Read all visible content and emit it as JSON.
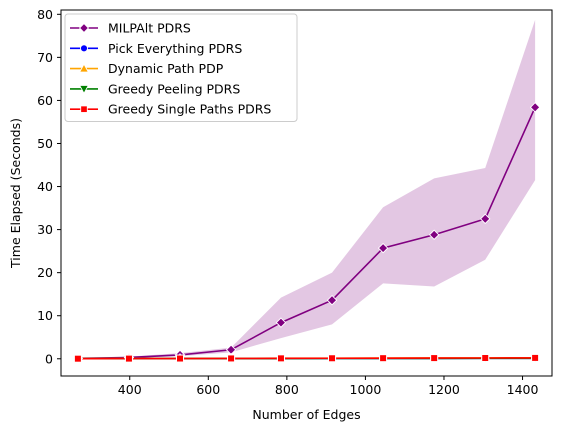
{
  "chart_data": {
    "type": "line",
    "xlabel": "Number of Edges",
    "ylabel": "Time Elapsed (Seconds)",
    "xlim": [
      225,
      1475
    ],
    "ylim": [
      -4,
      81
    ],
    "xticks": [
      400,
      600,
      800,
      1000,
      1200,
      1400
    ],
    "yticks": [
      0,
      10,
      20,
      30,
      40,
      50,
      60,
      70,
      80
    ],
    "grid": false,
    "legend_position": "upper left",
    "x": [
      268,
      398,
      528,
      658,
      785,
      915,
      1045,
      1175,
      1305,
      1432
    ],
    "series": [
      {
        "name": "MILPAlt PDRS",
        "color": "#800080",
        "marker": "diamond",
        "values": [
          0.1,
          0.3,
          0.9,
          2.1,
          8.4,
          13.6,
          25.7,
          28.8,
          32.5,
          58.4
        ],
        "ci_low": [
          0.05,
          0.15,
          0.6,
          1.5,
          4.8,
          8.0,
          17.5,
          16.8,
          23.0,
          41.5
        ],
        "ci_high": [
          0.2,
          0.5,
          1.3,
          2.6,
          14.2,
          20.0,
          35.2,
          41.9,
          44.3,
          78.7
        ]
      },
      {
        "name": "Pick Everything PDRS",
        "color": "#0000ff",
        "marker": "circle",
        "values": [
          0.02,
          0.03,
          0.04,
          0.05,
          0.06,
          0.07,
          0.08,
          0.09,
          0.1,
          0.11
        ]
      },
      {
        "name": "Dynamic Path PDP",
        "color": "#ffa500",
        "marker": "triangle-up",
        "values": [
          0.05,
          0.07,
          0.09,
          0.11,
          0.13,
          0.15,
          0.17,
          0.19,
          0.21,
          0.23
        ]
      },
      {
        "name": "Greedy Peeling PDRS",
        "color": "#008000",
        "marker": "triangle-down",
        "values": [
          0.02,
          0.03,
          0.04,
          0.05,
          0.06,
          0.07,
          0.08,
          0.09,
          0.1,
          0.11
        ]
      },
      {
        "name": "Greedy Single Paths PDRS",
        "color": "#ff0000",
        "marker": "square",
        "values": [
          0.02,
          0.04,
          0.06,
          0.08,
          0.1,
          0.12,
          0.14,
          0.16,
          0.18,
          0.2
        ]
      }
    ]
  }
}
